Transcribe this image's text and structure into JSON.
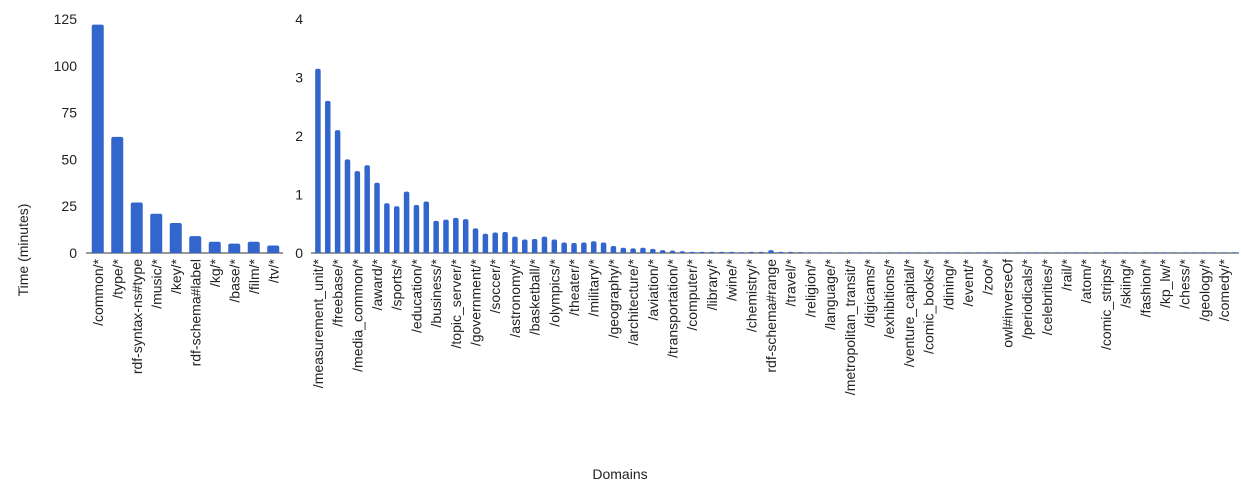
{
  "chart_data": [
    {
      "type": "bar",
      "ylabel": "Time (minutes)",
      "ylim": [
        0,
        125
      ],
      "yticks": [
        0,
        25,
        50,
        75,
        100,
        125
      ],
      "grid": false,
      "color": "#3366cc",
      "categories": [
        "/common/*",
        "/type/*",
        "rdf-syntax-ns#type",
        "/music/*",
        "/key/*",
        "rdf-schema#label",
        "/kg/*",
        "/base/*",
        "/film/*",
        "/tv/*"
      ],
      "values": [
        122,
        62,
        27,
        21,
        16,
        9,
        6,
        5,
        6,
        4
      ]
    },
    {
      "type": "bar",
      "xlabel": "Domains",
      "ylim": [
        0,
        4
      ],
      "yticks": [
        0,
        1,
        2,
        3,
        4
      ],
      "grid": false,
      "color": "#3366cc",
      "categories": [
        "/measurement_unit/*",
        "",
        "/freebase/*",
        "",
        "/media_common/*",
        "",
        "/award/*",
        "",
        "/sports/*",
        "",
        "/education/*",
        "",
        "/business/*",
        "",
        "/topic_server/*",
        "",
        "/government/*",
        "",
        "/soccer/*",
        "",
        "/astronomy/*",
        "",
        "/basketball/*",
        "",
        "/olympics/*",
        "",
        "/theater/*",
        "",
        "/military/*",
        "",
        "/geography/*",
        "",
        "/architecture/*",
        "",
        "/aviation/*",
        "",
        "/transportation/*",
        "",
        "/computer/*",
        "",
        "/library/*",
        "",
        "/wine/*",
        "",
        "/chemistry/*",
        "",
        "rdf-schema#range",
        "",
        "/travel/*",
        "",
        "/religion/*",
        "",
        "/language/*",
        "",
        "/metropolitan_transit/*",
        "",
        "/digicams/*",
        "",
        "/exhibitions/*",
        "",
        "/venture_capital/*",
        "",
        "/comic_books/*",
        "",
        "/dining/*",
        "",
        "/event/*",
        "",
        "/zoo/*",
        "",
        "owl#inverseOf",
        "",
        "/periodicals/*",
        "",
        "/celebrities/*",
        "",
        "/rail/*",
        "",
        "/atom/*",
        "",
        "/comic_strips/*",
        "",
        "/skiing/*",
        "",
        "/fashion/*",
        "",
        "/kp_lw/*",
        "",
        "/chess/*",
        "",
        "/geology/*",
        "",
        "/comedy/*",
        ""
      ],
      "values": [
        3.15,
        2.6,
        2.1,
        1.6,
        1.4,
        1.5,
        1.2,
        0.85,
        0.8,
        1.05,
        0.82,
        0.88,
        0.55,
        0.57,
        0.6,
        0.58,
        0.42,
        0.33,
        0.35,
        0.36,
        0.28,
        0.23,
        0.24,
        0.28,
        0.23,
        0.18,
        0.17,
        0.18,
        0.2,
        0.18,
        0.12,
        0.09,
        0.08,
        0.09,
        0.07,
        0.05,
        0.04,
        0.03,
        0.02,
        0.02,
        0.02,
        0.02,
        0.02,
        0.015,
        0.02,
        0.02,
        0.05,
        0.02,
        0.02,
        0.015,
        0.01,
        0.01,
        0.01,
        0.01,
        0.01,
        0.01,
        0.01,
        0.01,
        0.01,
        0.01,
        0.01,
        0.01,
        0.01,
        0.01,
        0.01,
        0.01,
        0.01,
        0.01,
        0.01,
        0.01,
        0.01,
        0.01,
        0.01,
        0.01,
        0.01,
        0.01,
        0.01,
        0.01,
        0.01,
        0.01,
        0.01,
        0.01,
        0.01,
        0.01,
        0.01,
        0.01,
        0.01,
        0.01,
        0.01,
        0.01,
        0.01,
        0.01,
        0.01,
        0.01
      ]
    }
  ]
}
